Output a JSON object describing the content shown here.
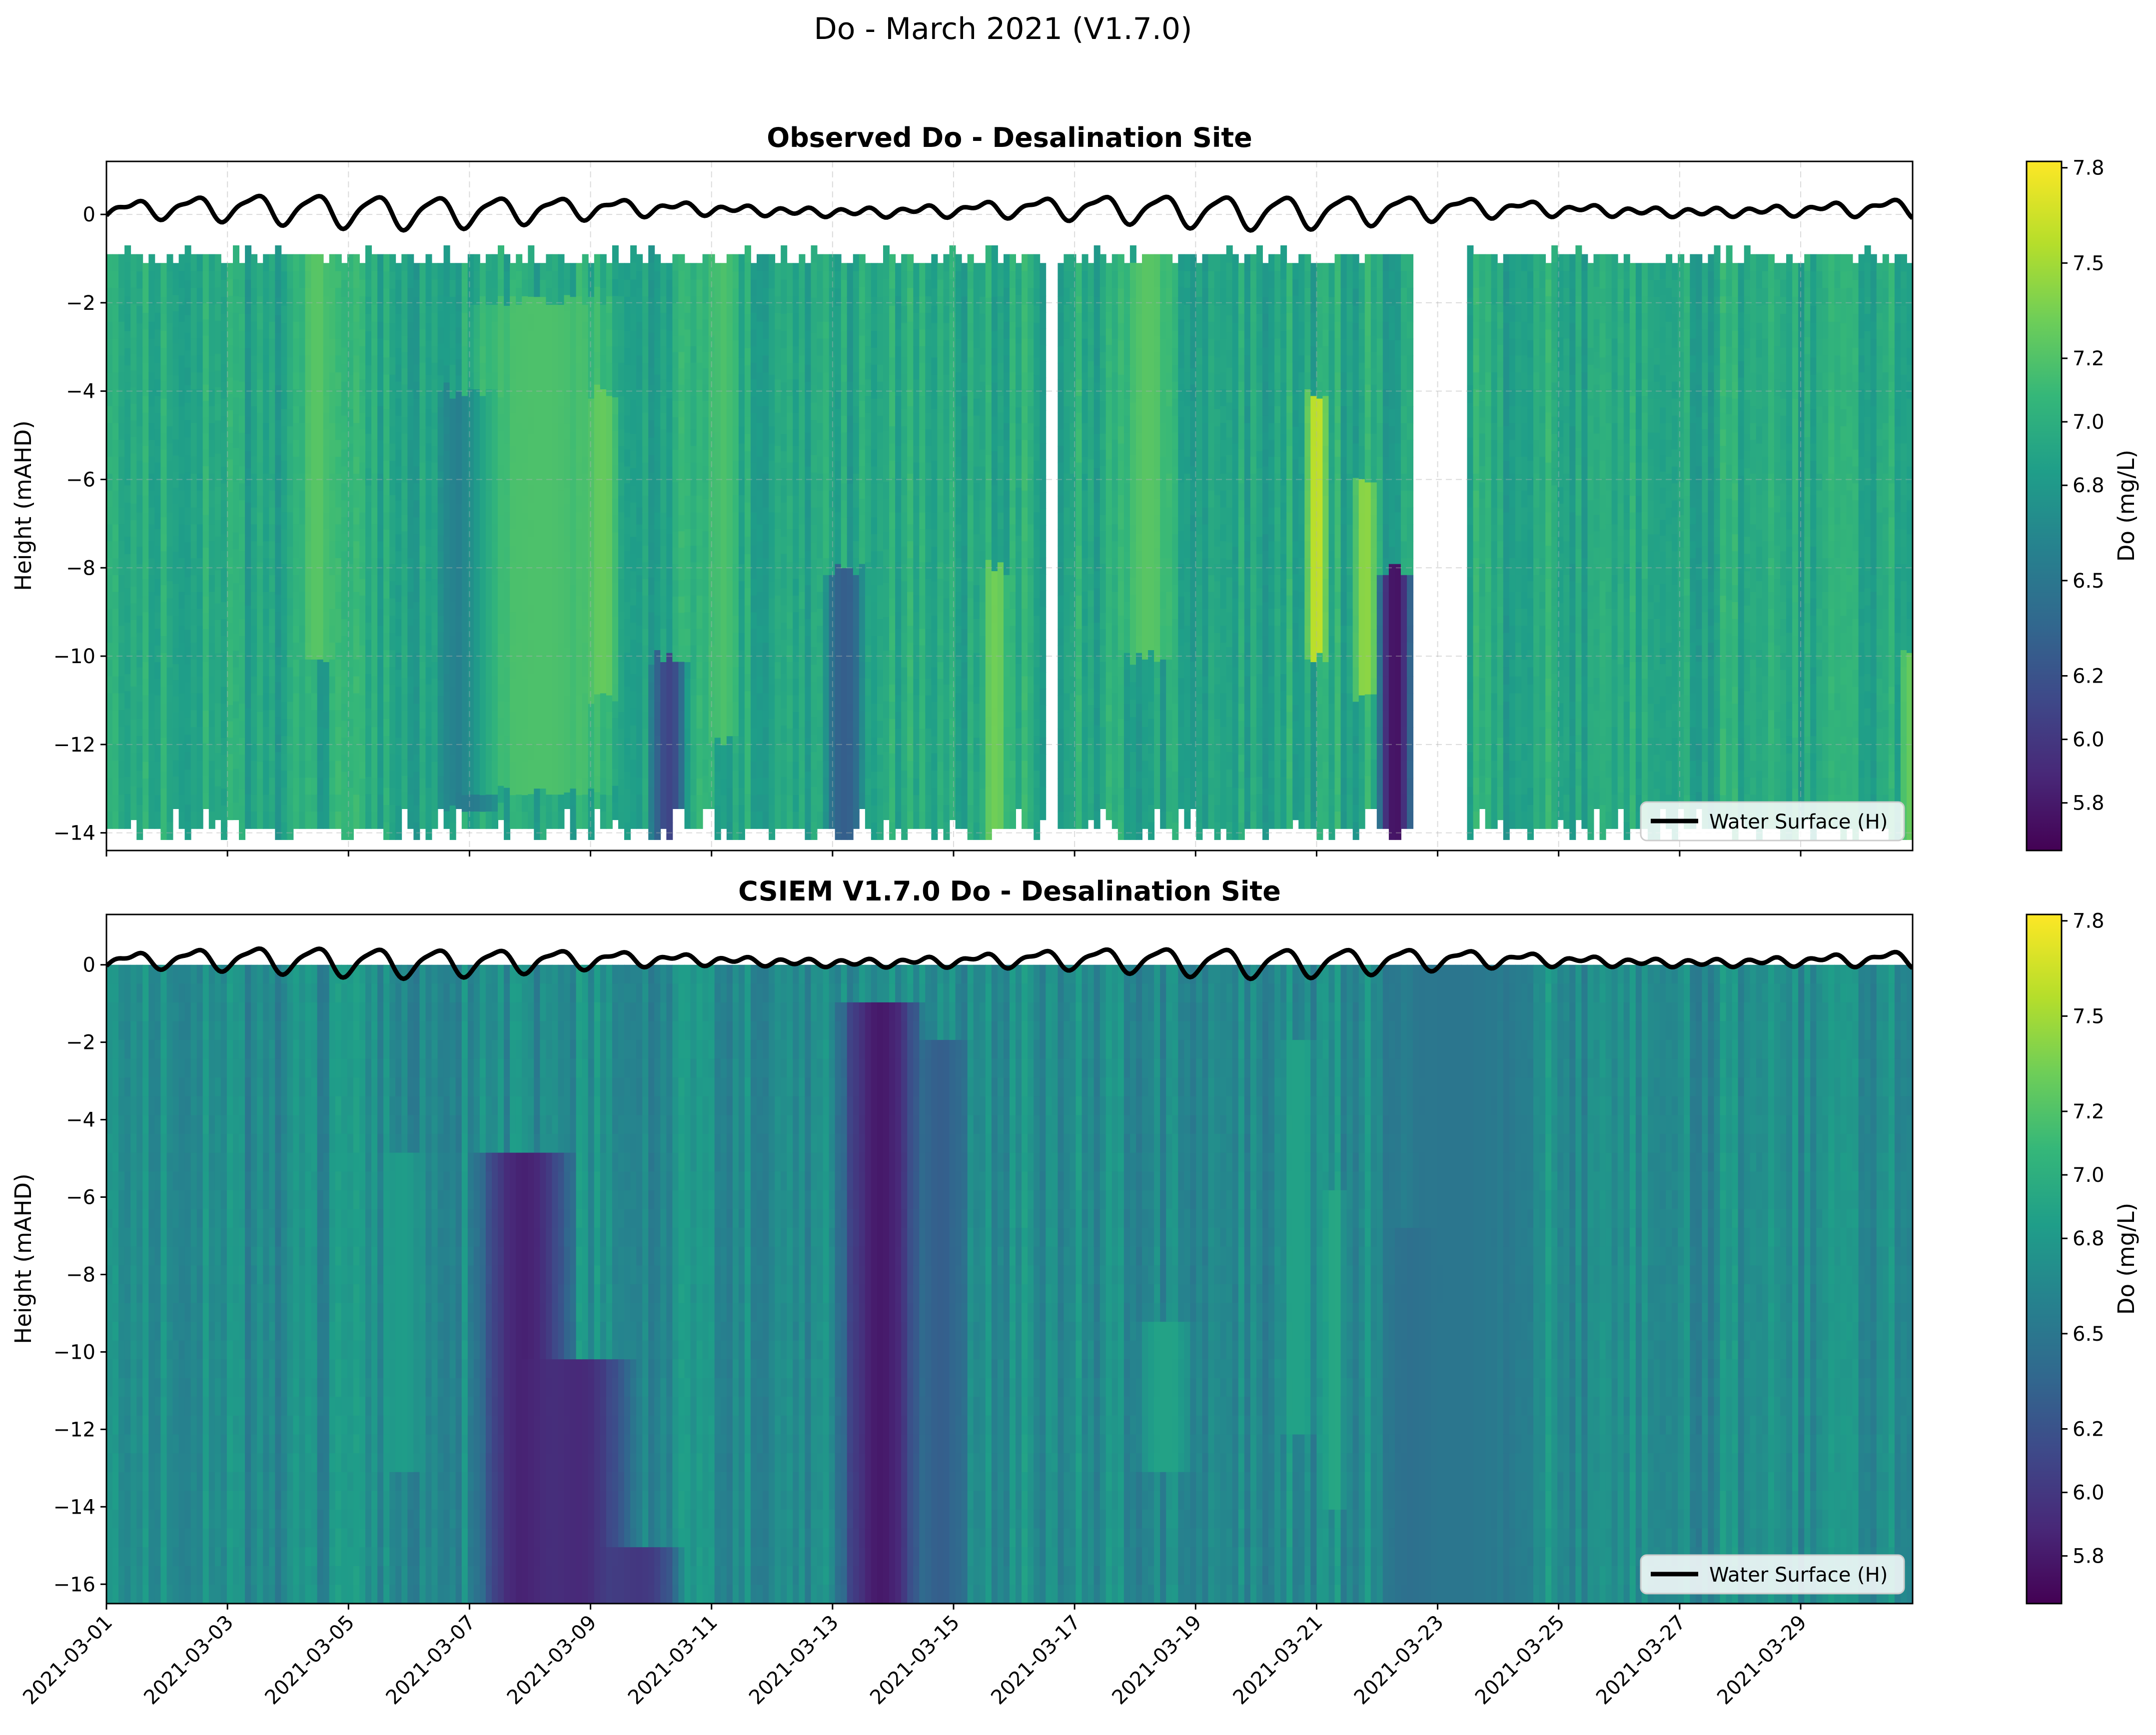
{
  "figure": {
    "suptitle": "Do - March 2021 (V1.7.0)"
  },
  "colors": {
    "water_line": "#000000",
    "gap": "#ffffff",
    "viridis": [
      "#440154",
      "#482878",
      "#3e4989",
      "#31688e",
      "#26828e",
      "#1f9e89",
      "#35b779",
      "#6ece58",
      "#b5de2b",
      "#fde725"
    ]
  },
  "chart_data": [
    {
      "type": "heatmap",
      "title": "Observed Do - Desalination Site",
      "xlabel": "",
      "ylabel": "Height (mAHD)",
      "ylim": [
        -14.4,
        1.2
      ],
      "xlim": [
        "2021-03-01",
        "2021-03-31"
      ],
      "yticks": [
        0,
        -2,
        -4,
        -6,
        -8,
        -10,
        -12,
        -14
      ],
      "ytick_labels": [
        "0",
        "−2",
        "−4",
        "−6",
        "−8",
        "−10",
        "−12",
        "−14"
      ],
      "xtick_labels_shown": false,
      "grid": true,
      "value_range": [
        5.65,
        7.82
      ],
      "data_extent_depth": [
        -13.9,
        -0.9
      ],
      "gaps": [
        [
          "2021-03-16 12:00",
          "2021-03-16 18:00"
        ],
        [
          "2021-03-22 15:00",
          "2021-03-23 12:00"
        ]
      ],
      "background_value": 6.95,
      "features": [
        {
          "day": 3.5,
          "width": 0.3,
          "from": -1,
          "to": -10,
          "value": 7.25
        },
        {
          "day": 6.0,
          "width": 0.6,
          "from": -4,
          "to": -13.5,
          "value": 6.55
        },
        {
          "day": 7.2,
          "width": 1.4,
          "from": -2,
          "to": -13,
          "value": 7.2
        },
        {
          "day": 8.2,
          "width": 0.3,
          "from": -4,
          "to": -11,
          "value": 7.3
        },
        {
          "day": 9.3,
          "width": 0.35,
          "from": -10,
          "to": -14,
          "value": 6.1
        },
        {
          "day": 10.2,
          "width": 0.3,
          "from": -1,
          "to": -12,
          "value": 7.2
        },
        {
          "day": 12.2,
          "width": 0.4,
          "from": -8,
          "to": -14,
          "value": 6.3
        },
        {
          "day": 14.7,
          "width": 0.25,
          "from": -8,
          "to": -14,
          "value": 7.35
        },
        {
          "day": 17.2,
          "width": 0.5,
          "from": -1,
          "to": -10,
          "value": 7.25
        },
        {
          "day": 20.0,
          "width": 0.2,
          "from": -4,
          "to": -10,
          "value": 7.65
        },
        {
          "day": 20.8,
          "width": 0.25,
          "from": -6,
          "to": -11,
          "value": 7.45
        },
        {
          "day": 21.3,
          "width": 0.35,
          "from": -8,
          "to": -14,
          "value": 5.75
        },
        {
          "day": 29.8,
          "width": 0.2,
          "from": -10,
          "to": -14,
          "value": 7.3
        }
      ],
      "legend": {
        "label": "Water Surface (H)",
        "loc": "lower right"
      },
      "water_surface": {
        "mean": 0.1,
        "amplitude": 0.35,
        "period_days": 1.0
      },
      "colorbar": {
        "label": "Do (mg/L)",
        "ticks": [
          5.8,
          6.0,
          6.2,
          6.5,
          6.8,
          7.0,
          7.2,
          7.5,
          7.8
        ],
        "tick_labels": [
          "5.8",
          "6.0",
          "6.2",
          "6.5",
          "6.8",
          "7.0",
          "7.2",
          "7.5",
          "7.8"
        ]
      }
    },
    {
      "type": "heatmap",
      "title": "CSIEM V1.7.0 Do - Desalination Site",
      "xlabel": "",
      "ylabel": "Height (mAHD)",
      "ylim": [
        -16.5,
        1.3
      ],
      "xlim": [
        "2021-03-01",
        "2021-03-31"
      ],
      "yticks": [
        0,
        -2,
        -4,
        -6,
        -8,
        -10,
        -12,
        -14,
        -16
      ],
      "ytick_labels": [
        "0",
        "−2",
        "−4",
        "−6",
        "−8",
        "−10",
        "−12",
        "−14",
        "−16"
      ],
      "xticks": [
        "2021-03-01",
        "2021-03-03",
        "2021-03-05",
        "2021-03-07",
        "2021-03-09",
        "2021-03-11",
        "2021-03-13",
        "2021-03-15",
        "2021-03-17",
        "2021-03-19",
        "2021-03-21",
        "2021-03-23",
        "2021-03-25",
        "2021-03-27",
        "2021-03-29"
      ],
      "xtick_labels_shown": true,
      "grid": false,
      "value_range": [
        5.65,
        7.82
      ],
      "data_extent_depth": [
        -16.5,
        0
      ],
      "background_value": 6.7,
      "features": [
        {
          "day": 4.9,
          "width": 0.4,
          "from": -5,
          "to": -13,
          "value": 6.85
        },
        {
          "day": 6.9,
          "width": 0.9,
          "from": -5,
          "to": -16.5,
          "value": 5.85
        },
        {
          "day": 7.8,
          "width": 1.0,
          "from": -10,
          "to": -16.5,
          "value": 5.9
        },
        {
          "day": 8.8,
          "width": 0.8,
          "from": -15,
          "to": -16.5,
          "value": 6.0
        },
        {
          "day": 12.8,
          "width": 0.8,
          "from": -1,
          "to": -16.5,
          "value": 5.8
        },
        {
          "day": 13.8,
          "width": 0.5,
          "from": -2,
          "to": -16.5,
          "value": 6.3
        },
        {
          "day": 17.5,
          "width": 0.5,
          "from": -9,
          "to": -13,
          "value": 6.9
        },
        {
          "day": 19.7,
          "width": 0.3,
          "from": -2,
          "to": -12,
          "value": 6.9
        },
        {
          "day": 20.3,
          "width": 0.2,
          "from": -6,
          "to": -14,
          "value": 6.95
        },
        {
          "day": 21.7,
          "width": 0.5,
          "from": -7,
          "to": -16.5,
          "value": 6.25
        },
        {
          "day": 22.3,
          "width": 1.5,
          "from": 0,
          "to": -16.5,
          "value": 6.5
        }
      ],
      "legend": {
        "label": "Water Surface (H)",
        "loc": "lower right"
      },
      "water_surface": {
        "mean": 0.1,
        "amplitude": 0.35,
        "period_days": 1.0
      },
      "colorbar": {
        "label": "Do (mg/L)",
        "ticks": [
          5.8,
          6.0,
          6.2,
          6.5,
          6.8,
          7.0,
          7.2,
          7.5,
          7.8
        ],
        "tick_labels": [
          "5.8",
          "6.0",
          "6.2",
          "6.5",
          "6.8",
          "7.0",
          "7.2",
          "7.5",
          "7.8"
        ]
      }
    }
  ]
}
